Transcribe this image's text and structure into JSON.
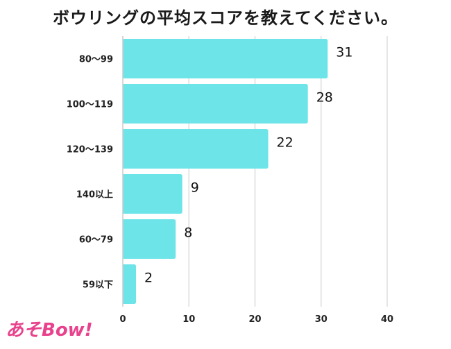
{
  "chart_data": {
    "type": "bar",
    "orientation": "horizontal",
    "title": "ボウリングの平均スコアを教えてください。",
    "categories": [
      "80〜99",
      "100〜119",
      "120〜139",
      "140以上",
      "60〜79",
      "59以下"
    ],
    "values": [
      31,
      28,
      22,
      9,
      8,
      2
    ],
    "xlim": [
      0,
      40
    ],
    "xticks": [
      0,
      10,
      20,
      30,
      40
    ],
    "grid": true,
    "bar_color": "#6ce4e8",
    "grid_color": "#dddddd"
  },
  "logo": {
    "text": "あそBow!",
    "color": "#e8428c"
  }
}
